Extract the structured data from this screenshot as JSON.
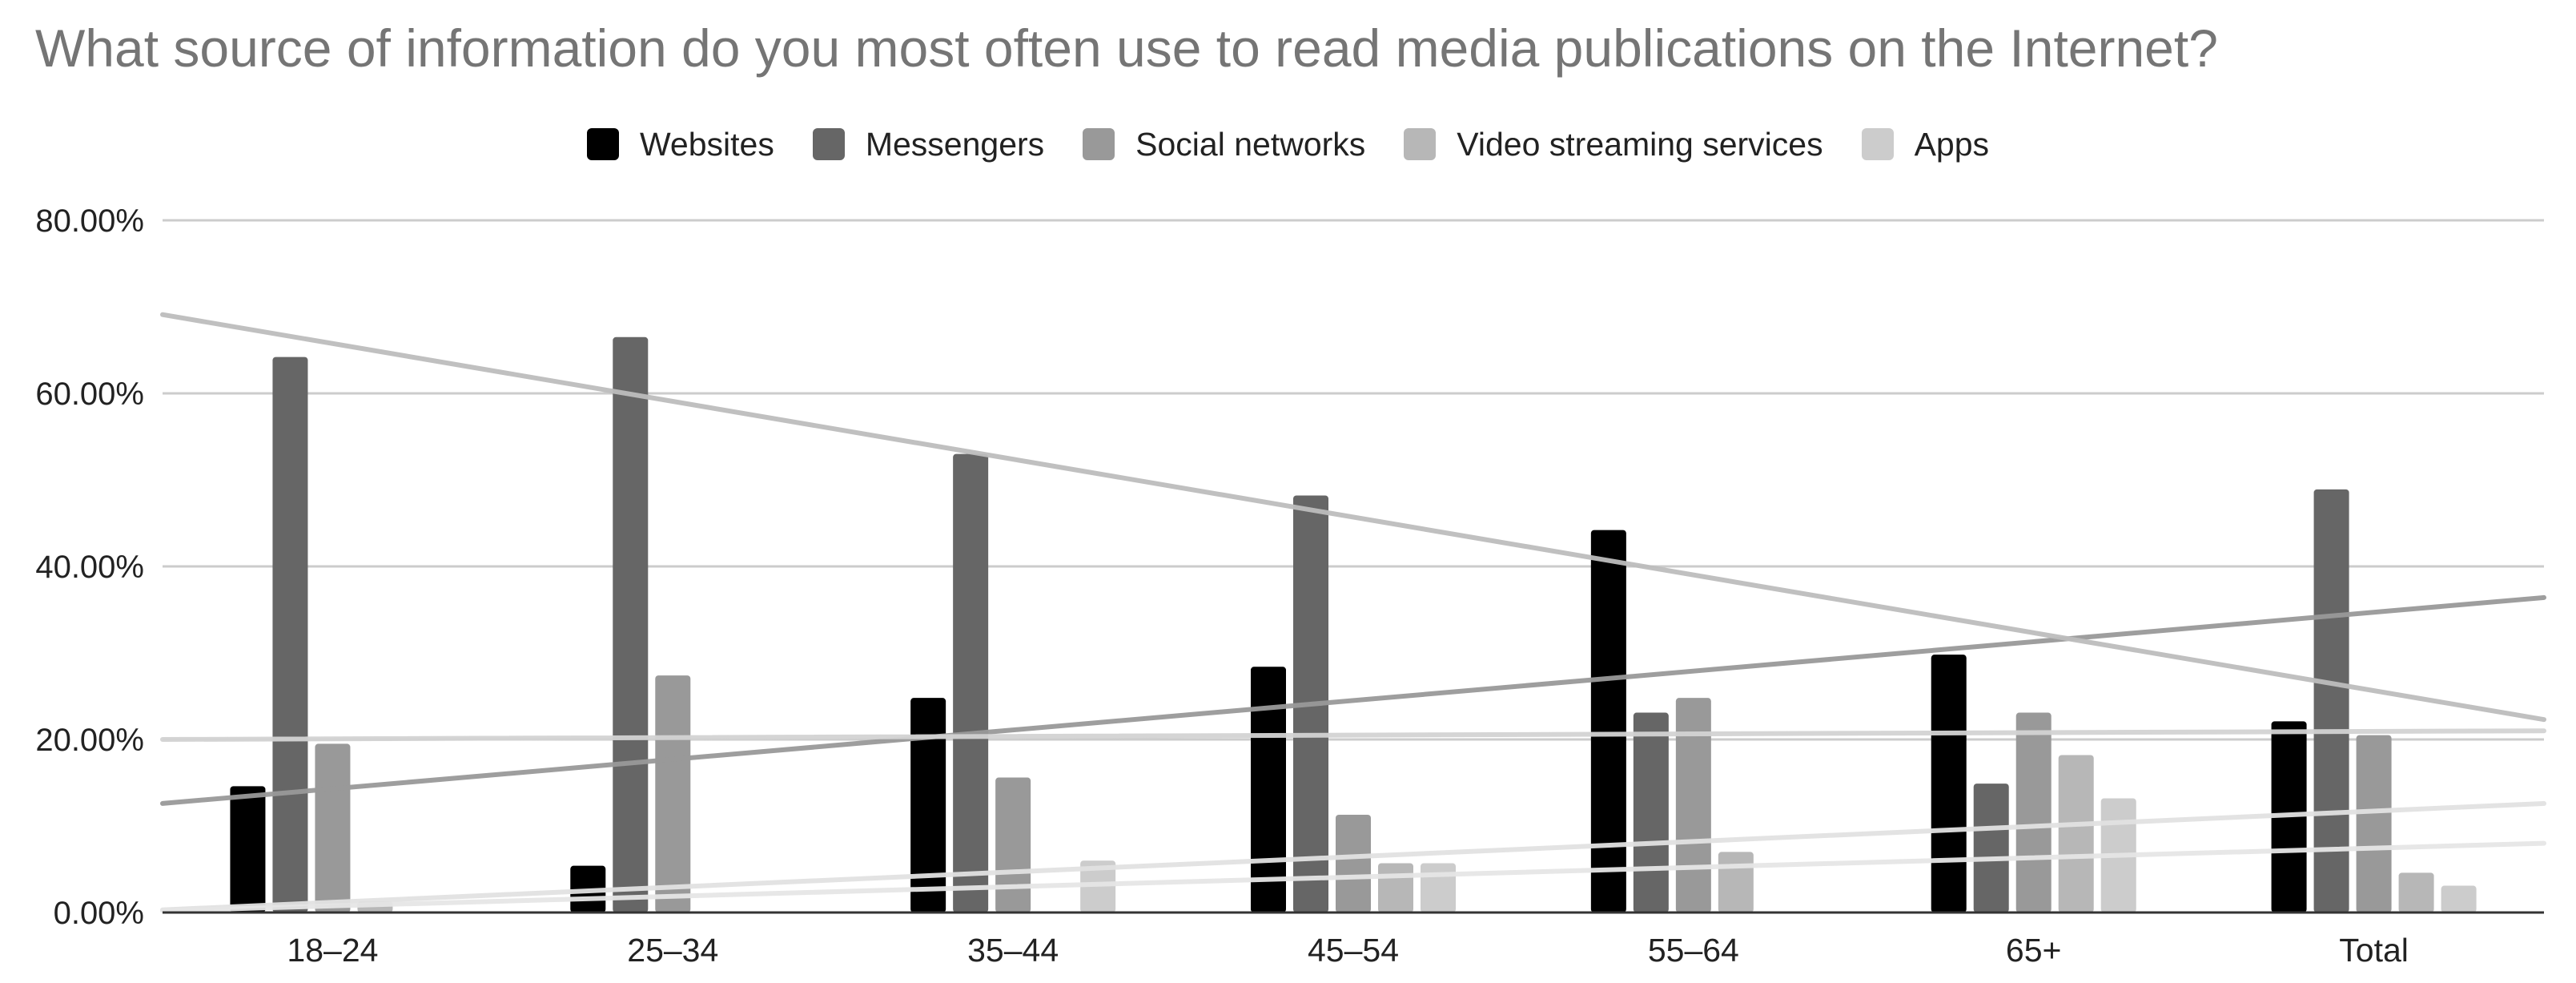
{
  "chart_data": {
    "type": "bar",
    "title": "What source of information do you most often use to read media publications on the Internet?",
    "categories": [
      "18–24",
      "25–34",
      "35–44",
      "45–54",
      "55–64",
      "65+",
      "Total"
    ],
    "series": [
      {
        "name": "Websites",
        "color": "#000000",
        "values": [
          14.6,
          5.4,
          24.8,
          28.4,
          44.2,
          29.8,
          22.1
        ]
      },
      {
        "name": "Messengers",
        "color": "#666666",
        "values": [
          64.2,
          66.5,
          53.0,
          48.2,
          23.1,
          14.9,
          48.9
        ]
      },
      {
        "name": "Social networks",
        "color": "#999999",
        "values": [
          19.5,
          27.4,
          15.6,
          11.3,
          24.8,
          23.1,
          20.5
        ]
      },
      {
        "name": "Video streaming services",
        "color": "#b7b7b7",
        "values": [
          1.3,
          0.0,
          0.0,
          5.7,
          7.0,
          18.2,
          4.6
        ]
      },
      {
        "name": "Apps",
        "color": "#cccccc",
        "values": [
          0.0,
          0.0,
          6.0,
          5.7,
          0.0,
          13.2,
          3.1
        ]
      }
    ],
    "trendlines": [
      {
        "series": "Websites",
        "color": "#999999",
        "start": 12.6,
        "end": 36.4
      },
      {
        "series": "Messengers",
        "color": "#bdbdbd",
        "start": 69.1,
        "end": 22.3
      },
      {
        "series": "Social networks",
        "color": "#d3d3d3",
        "start": 20.0,
        "end": 21.0
      },
      {
        "series": "Video streaming services",
        "color": "#e2e2e2",
        "start": 0.3,
        "end": 12.6
      },
      {
        "series": "Apps",
        "color": "#e6e6e6",
        "start": 0.2,
        "end": 8.0
      }
    ],
    "ylim": [
      0,
      80
    ],
    "yticks": [
      "0.00%",
      "20.00%",
      "40.00%",
      "60.00%",
      "80.00%"
    ],
    "grid": true,
    "legend": "top-center",
    "xlabel": "",
    "ylabel": ""
  }
}
